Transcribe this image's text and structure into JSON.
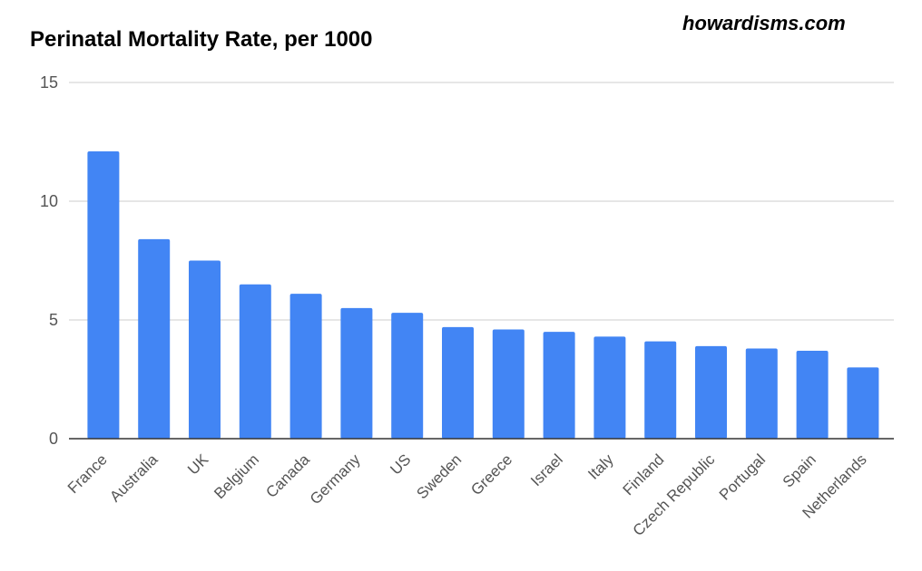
{
  "watermark": "howardisms.com",
  "colors": {
    "bar": "#4285f4",
    "grid": "#cccccc",
    "axis": "#333333",
    "text": "#555555"
  },
  "chart_data": {
    "type": "bar",
    "title": "Perinatal Mortality Rate, per 1000",
    "xlabel": "",
    "ylabel": "",
    "ylim": [
      0,
      15
    ],
    "yticks": [
      0,
      5,
      10,
      15
    ],
    "grid": true,
    "legend": "none",
    "categories": [
      "France",
      "Australia",
      "UK",
      "Belgium",
      "Canada",
      "Germany",
      "US",
      "Sweden",
      "Greece",
      "Israel",
      "Italy",
      "Finland",
      "Czech Republic",
      "Portugal",
      "Spain",
      "Netherlands"
    ],
    "values": [
      12.1,
      8.4,
      7.5,
      6.5,
      6.1,
      5.5,
      5.3,
      4.7,
      4.6,
      4.5,
      4.3,
      4.1,
      3.9,
      3.8,
      3.7,
      3.0
    ]
  }
}
